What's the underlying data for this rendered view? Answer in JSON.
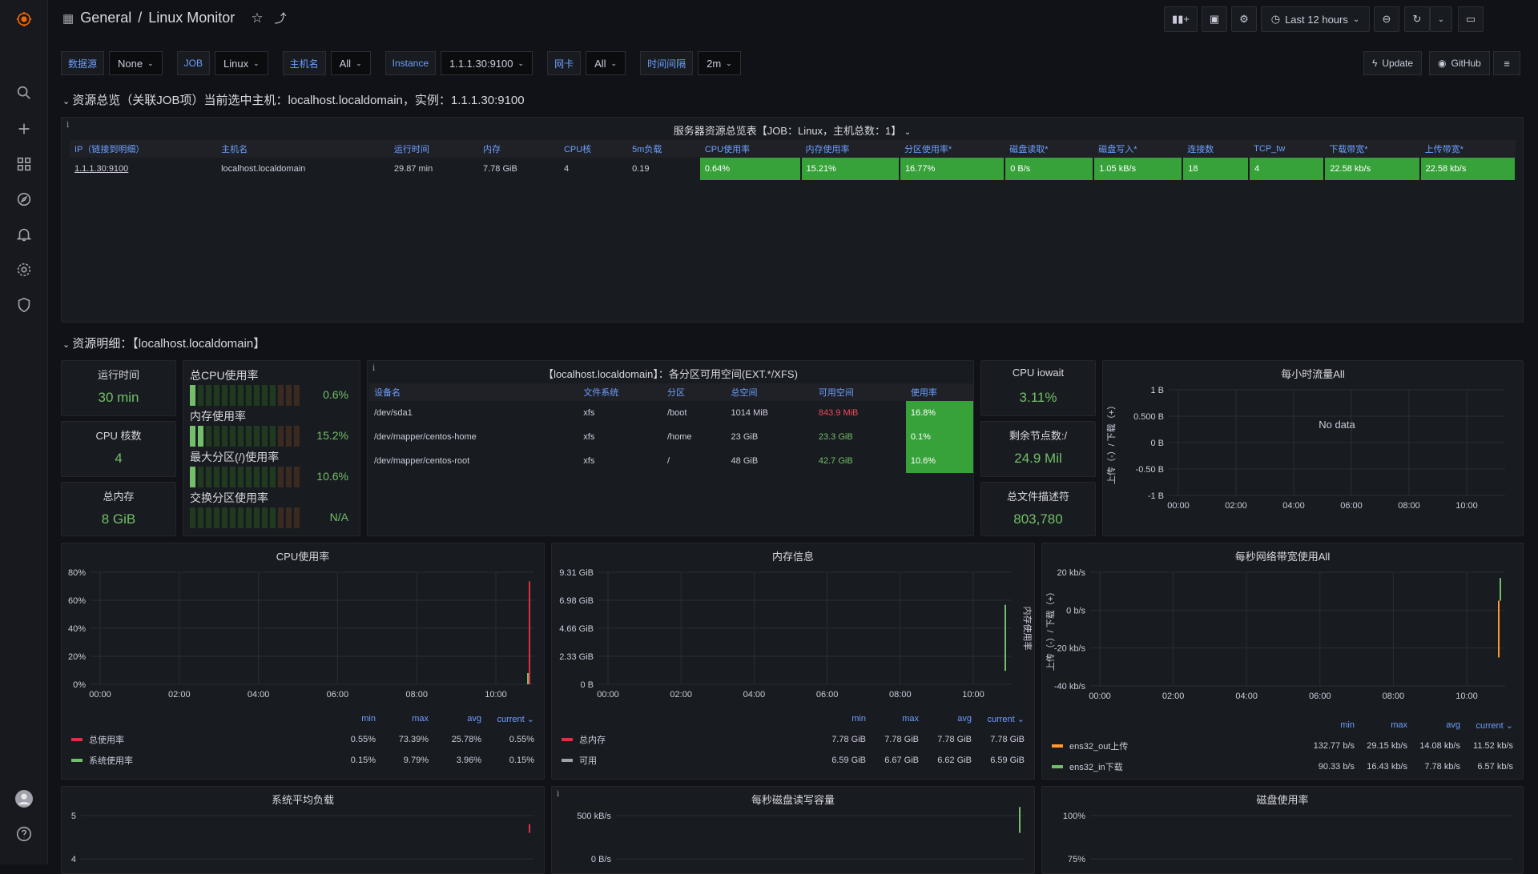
{
  "breadcrumb": {
    "folder": "General",
    "separator": "/",
    "dashboard": "Linux Monitor"
  },
  "toolbar": {
    "time_range": "Last 12 hours",
    "update": "Update",
    "github": "GitHub"
  },
  "variables": [
    {
      "label": "数据源",
      "value": "None"
    },
    {
      "label": "JOB",
      "value": "Linux"
    },
    {
      "label": "主机名",
      "value": "All"
    },
    {
      "label": "Instance",
      "value": "1.1.1.30:9100"
    },
    {
      "label": "网卡",
      "value": "All"
    },
    {
      "label": "时间间隔",
      "value": "2m"
    }
  ],
  "row1": {
    "title": "资源总览（关联JOB项）当前选中主机：localhost.localdomain，实例：1.1.1.30:9100"
  },
  "overview": {
    "title": "服务器资源总览表【JOB：Linux，主机总数：1】",
    "headers": [
      "IP（链接到明细）",
      "主机名",
      "运行时间",
      "内存",
      "CPU核",
      "5m负载",
      "CPU使用率",
      "内存使用率",
      "分区使用率*",
      "磁盘读取*",
      "磁盘写入*",
      "连接数",
      "TCP_tw",
      "下载带宽*",
      "上传带宽*"
    ],
    "row": [
      "1.1.1.30:9100",
      "localhost.localdomain",
      "29.87 min",
      "7.78 GiB",
      "4",
      "0.19",
      "0.64%",
      "15.21%",
      "16.77%",
      "0 B/s",
      "1.05 kB/s",
      "18",
      "4",
      "22.58 kb/s",
      "22.58 kb/s"
    ]
  },
  "row2": {
    "title": "资源明细：【localhost.localdomain】"
  },
  "stats": {
    "uptime": {
      "title": "运行时间",
      "value": "30 min"
    },
    "cpu_cores": {
      "title": "CPU 核数",
      "value": "4"
    },
    "total_mem": {
      "title": "总内存",
      "value": "8 GiB"
    },
    "iowait": {
      "title": "CPU iowait",
      "value": "3.11%"
    },
    "free_nodes": {
      "title": "剩余节点数:/",
      "value": "24.9 Mil"
    },
    "fd": {
      "title": "总文件描述符",
      "value": "803,780"
    }
  },
  "bargauge": [
    {
      "label": "总CPU使用率",
      "value": "0.6%",
      "fraction": 0.006
    },
    {
      "label": "内存使用率",
      "value": "15.2%",
      "fraction": 0.152
    },
    {
      "label": "最大分区(/)使用率",
      "value": "10.6%",
      "fraction": 0.106
    },
    {
      "label": "交换分区使用率",
      "value": "N/A",
      "fraction": 0
    }
  ],
  "fs": {
    "title": "【localhost.localdomain】：各分区可用空间(EXT.*/XFS)",
    "headers": [
      "设备名",
      "文件系统",
      "分区",
      "总空间",
      "可用空间",
      "使用率"
    ],
    "rows": [
      [
        "/dev/sda1",
        "xfs",
        "/boot",
        "1014 MiB",
        "843.9 MiB",
        "16.8%"
      ],
      [
        "/dev/mapper/centos-home",
        "xfs",
        "/home",
        "23 GiB",
        "23.3 GiB",
        "0.1%"
      ],
      [
        "/dev/mapper/centos-root",
        "xfs",
        "/",
        "48 GiB",
        "42.7 GiB",
        "10.6%"
      ]
    ],
    "avail_colors": [
      "#f2495c",
      "#73bf69",
      "#73bf69"
    ]
  },
  "hourly": {
    "title": "每小时流量All",
    "no_data": "No data",
    "ylabel": "上传（-）/ 下载（+）"
  },
  "legend_heads": {
    "min": "min",
    "max": "max",
    "avg": "avg",
    "current": "current"
  },
  "chart_data": [
    {
      "type": "line",
      "title": "每小时流量All",
      "x_ticks": [
        "00:00",
        "02:00",
        "04:00",
        "06:00",
        "08:00",
        "10:00"
      ],
      "y_ticks": [
        "1 B",
        "0.500 B",
        "0 B",
        "-0.50 B",
        "-1 B"
      ],
      "series": []
    },
    {
      "type": "line",
      "title": "CPU使用率",
      "x_ticks": [
        "00:00",
        "02:00",
        "04:00",
        "06:00",
        "08:00",
        "10:00"
      ],
      "y_ticks": [
        "80%",
        "60%",
        "40%",
        "20%",
        "0%"
      ],
      "ylim": [
        0,
        80
      ],
      "series": [
        {
          "name": "总使用率",
          "color": "#e02f44",
          "min": "0.55%",
          "max": "73.39%",
          "avg": "25.78%",
          "current": "0.55%"
        },
        {
          "name": "系统使用率",
          "color": "#73bf69",
          "min": "0.15%",
          "max": "9.79%",
          "avg": "3.96%",
          "current": "0.15%"
        }
      ]
    },
    {
      "type": "line",
      "title": "内存信息",
      "x_ticks": [
        "00:00",
        "02:00",
        "04:00",
        "06:00",
        "08:00",
        "10:00"
      ],
      "y_ticks": [
        "9.31 GiB",
        "6.98 GiB",
        "4.66 GiB",
        "2.33 GiB",
        "0 B"
      ],
      "ylabel_right": "内存使用率",
      "series": [
        {
          "name": "总内存",
          "color": "#e02f44",
          "min": "7.78 GiB",
          "max": "7.78 GiB",
          "avg": "7.78 GiB",
          "current": "7.78 GiB"
        },
        {
          "name": "可用",
          "color": "#9fa2ab",
          "min": "6.59 GiB",
          "max": "6.67 GiB",
          "avg": "6.62 GiB",
          "current": "6.59 GiB"
        }
      ]
    },
    {
      "type": "line",
      "title": "每秒网络带宽使用All",
      "x_ticks": [
        "00:00",
        "02:00",
        "04:00",
        "06:00",
        "08:00",
        "10:00"
      ],
      "y_ticks": [
        "20 kb/s",
        "0 b/s",
        "-20 kb/s",
        "-40 kb/s"
      ],
      "ylabel": "上传（-）/ 下载（+）",
      "series": [
        {
          "name": "ens32_out上传",
          "color": "#ff9830",
          "min": "132.77 b/s",
          "max": "29.15 kb/s",
          "avg": "14.08 kb/s",
          "current": "11.52 kb/s"
        },
        {
          "name": "ens32_in下载",
          "color": "#73bf69",
          "min": "90.33 b/s",
          "max": "16.43 kb/s",
          "avg": "7.78 kb/s",
          "current": "6.57 kb/s"
        }
      ]
    },
    {
      "type": "line",
      "title": "系统平均负载",
      "y_ticks": [
        "5",
        "4"
      ]
    },
    {
      "type": "line",
      "title": "每秒磁盘读写容量",
      "y_ticks": [
        "500 kB/s",
        "0 B/s"
      ]
    },
    {
      "type": "line",
      "title": "磁盘使用率",
      "y_ticks": [
        "100%",
        "75%"
      ]
    }
  ]
}
